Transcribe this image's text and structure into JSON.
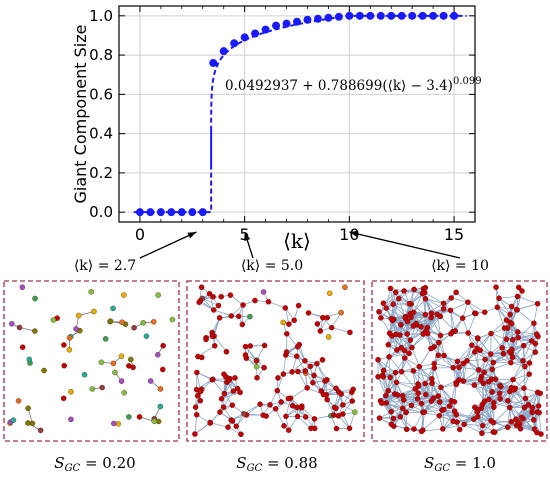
{
  "chart_data": {
    "type": "scatter",
    "ylabel": "Giant Component Size",
    "xlabel": "⟨k⟩",
    "xlim": [
      -1,
      16
    ],
    "ylim": [
      -0.05,
      1.05
    ],
    "x_ticks": [
      0,
      5,
      10,
      15
    ],
    "y_ticks": [
      0.0,
      0.2,
      0.4,
      0.6,
      0.8,
      1.0
    ],
    "x_tick_labels": [
      "0",
      "5",
      "10",
      "15"
    ],
    "y_tick_labels": [
      "0.0",
      "0.2",
      "0.4",
      "0.6",
      "0.8",
      "1.0"
    ],
    "grid": true,
    "fit_formula": "0.0492937 + 0.788699(⟨k⟩ − 3.4)^0.099",
    "fit": {
      "a": 0.0492937,
      "b": 0.788699,
      "k0": 3.4,
      "p": 0.099
    },
    "colors": {
      "points": "#1a1aff",
      "fit": "#1a1aff"
    },
    "series": [
      {
        "x": [
          0,
          0.5,
          1.0,
          1.5,
          2.0,
          2.5,
          3.0,
          3.5,
          4.0,
          4.5,
          5.0,
          5.5,
          6.0,
          6.5,
          7.0,
          7.5,
          8.0,
          8.5,
          9.0,
          9.5,
          10.0,
          10.5,
          11.0,
          11.5,
          12.0,
          12.5,
          13.0,
          13.5,
          14.0,
          14.5,
          15.0
        ],
        "y": [
          0.0,
          0.0,
          0.0,
          0.0,
          0.0,
          0.0,
          0.0,
          0.76,
          0.82,
          0.86,
          0.89,
          0.91,
          0.93,
          0.95,
          0.96,
          0.97,
          0.98,
          0.985,
          0.99,
          0.995,
          1.0,
          1.0,
          1.0,
          1.0,
          1.0,
          1.0,
          1.0,
          1.0,
          1.0,
          1.0,
          1.0
        ]
      }
    ]
  },
  "callouts": [
    {
      "label": "⟨k⟩ = 2.7",
      "k": 2.7
    },
    {
      "label": "⟨k⟩ = 5.0",
      "k": 5.0
    },
    {
      "label": "⟨k⟩ = 10",
      "k": 10
    }
  ],
  "panels": [
    {
      "caption": "S_GC = 0.20",
      "cap_main": "S",
      "cap_sub": "GC",
      "cap_val": " = 0.20"
    },
    {
      "caption": "S_GC = 0.88",
      "cap_main": "S",
      "cap_sub": "GC",
      "cap_val": " = 0.88"
    },
    {
      "caption": "S_GC = 1.0",
      "cap_main": "S",
      "cap_sub": "GC",
      "cap_val": " = 1.0"
    }
  ],
  "panel_style": {
    "border": "#a0304a",
    "edge": "#8aa6c8",
    "giant_node": "#c00000"
  },
  "cluster_colors": [
    "#c00000",
    "#e0b000",
    "#3aa050",
    "#7a7a00",
    "#e07020",
    "#a050c0",
    "#20b090",
    "#904040",
    "#80c040"
  ]
}
